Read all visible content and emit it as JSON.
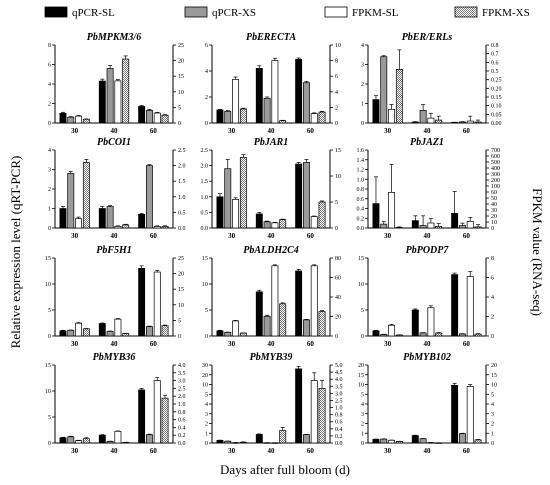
{
  "figure": {
    "left_axis_label": "Relative expression level (qRT-PCR)",
    "right_axis_label": "FPKM value (RNA-seq)",
    "x_axis_label": "Days after full bloom (d)"
  },
  "legend": [
    {
      "label": "qPCR-SL",
      "pattern": "solid-black"
    },
    {
      "label": "qPCR-XS",
      "pattern": "solid-gray"
    },
    {
      "label": "FPKM-SL",
      "pattern": "white"
    },
    {
      "label": "FPKM-XS",
      "pattern": "dotted"
    }
  ],
  "colors": {
    "qpcr_sl": "#000000",
    "qpcr_xs": "#9a9a9a",
    "fpkm_sl": "#ffffff",
    "fpkm_xs": "#d9d9d9"
  },
  "chart_data": [
    {
      "type": "bar",
      "title": "PbMPKM3/6",
      "categories": [
        "30",
        "40",
        "60"
      ],
      "left_ylim": [
        0,
        8
      ],
      "left_ticks": [
        "0",
        "2",
        "4",
        "6",
        "8"
      ],
      "right_ylim": [
        0,
        25
      ],
      "right_ticks": [
        "0",
        "5",
        "10",
        "15",
        "20",
        "25"
      ],
      "series": [
        {
          "name": "qPCR-SL",
          "axis": "left",
          "values": [
            1.0,
            4.3,
            1.7
          ],
          "errors": [
            0.1,
            0.2,
            0.1
          ]
        },
        {
          "name": "qPCR-XS",
          "axis": "left",
          "values": [
            0.6,
            5.6,
            1.3
          ],
          "errors": [
            0.05,
            0.3,
            0.1
          ]
        },
        {
          "name": "FPKM-SL",
          "axis": "right",
          "values": [
            2.2,
            13.5,
            3.2
          ],
          "errors": [
            0.2,
            0.4,
            0.2
          ]
        },
        {
          "name": "FPKM-XS",
          "axis": "right",
          "values": [
            1.2,
            20.5,
            2.5
          ],
          "errors": [
            0.1,
            1.0,
            0.2
          ]
        }
      ]
    },
    {
      "type": "bar",
      "title": "PbERECTA",
      "categories": [
        "30",
        "40",
        "60"
      ],
      "left_ylim": [
        0,
        6
      ],
      "left_ticks": [
        "0",
        "2",
        "4",
        "6"
      ],
      "right_ylim": [
        0,
        10
      ],
      "right_ticks": [
        "0",
        "2",
        "4",
        "6",
        "8",
        "10"
      ],
      "series": [
        {
          "name": "qPCR-SL",
          "axis": "left",
          "values": [
            1.0,
            4.2,
            4.9
          ],
          "errors": [
            0.05,
            0.2,
            0.1
          ]
        },
        {
          "name": "qPCR-XS",
          "axis": "left",
          "values": [
            0.9,
            1.9,
            3.1
          ],
          "errors": [
            0.05,
            0.1,
            0.1
          ]
        },
        {
          "name": "FPKM-SL",
          "axis": "right",
          "values": [
            5.6,
            8.0,
            1.2
          ],
          "errors": [
            0.3,
            0.3,
            0.1
          ]
        },
        {
          "name": "FPKM-XS",
          "axis": "right",
          "values": [
            1.8,
            0.3,
            1.4
          ],
          "errors": [
            0.1,
            0.05,
            0.1
          ]
        }
      ]
    },
    {
      "type": "bar",
      "title": "PbER/ERLs",
      "categories": [
        "30",
        "40",
        "60"
      ],
      "left_ylim": [
        0,
        4
      ],
      "left_ticks": [
        "0",
        "1",
        "2",
        "3",
        "4"
      ],
      "right_ylim": [
        0,
        0.8
      ],
      "right_ticks": [
        "0.00",
        "0.05",
        "0.10",
        "0.15",
        "0.20",
        "0.25",
        "0.5",
        "0.6",
        "0.7",
        "0.8"
      ],
      "series": [
        {
          "name": "qPCR-SL",
          "axis": "left",
          "values": [
            1.2,
            0.05,
            0.03
          ],
          "errors": [
            0.2,
            0.02,
            0.01
          ]
        },
        {
          "name": "qPCR-XS",
          "axis": "left",
          "values": [
            3.4,
            0.65,
            0.05
          ],
          "errors": [
            0.05,
            0.3,
            0.02
          ]
        },
        {
          "name": "FPKM-SL",
          "axis": "right",
          "values": [
            0.14,
            0.05,
            0.02
          ],
          "errors": [
            0.05,
            0.05,
            0.05
          ]
        },
        {
          "name": "FPKM-XS",
          "axis": "right",
          "values": [
            0.55,
            0.03,
            0.01
          ],
          "errors": [
            0.2,
            0.04,
            0.02
          ]
        }
      ]
    },
    {
      "type": "bar",
      "title": "PbCOI1",
      "categories": [
        "30",
        "40",
        "60"
      ],
      "left_ylim": [
        0,
        4
      ],
      "left_ticks": [
        "0",
        "1",
        "2",
        "3",
        "4"
      ],
      "right_ylim": [
        0,
        2.5
      ],
      "right_ticks": [
        "0.0",
        "0.5",
        "1.0",
        "1.5",
        "2.0",
        "2.5"
      ],
      "series": [
        {
          "name": "qPCR-SL",
          "axis": "left",
          "values": [
            1.0,
            1.0,
            0.7
          ],
          "errors": [
            0.1,
            0.1,
            0.05
          ]
        },
        {
          "name": "qPCR-XS",
          "axis": "left",
          "values": [
            2.8,
            1.1,
            3.2
          ],
          "errors": [
            0.1,
            0.05,
            0.05
          ]
        },
        {
          "name": "FPKM-SL",
          "axis": "right",
          "values": [
            0.3,
            0.05,
            0.05
          ],
          "errors": [
            0.05,
            0.02,
            0.02
          ]
        },
        {
          "name": "FPKM-XS",
          "axis": "right",
          "values": [
            2.1,
            0.1,
            0.05
          ],
          "errors": [
            0.1,
            0.02,
            0.02
          ]
        }
      ]
    },
    {
      "type": "bar",
      "title": "PbJAR1",
      "categories": [
        "30",
        "40",
        "60"
      ],
      "left_ylim": [
        0,
        2.5
      ],
      "left_ticks": [
        "0.0",
        "0.5",
        "1.0",
        "1.5",
        "2.0",
        "2.5"
      ],
      "right_ylim": [
        0,
        15
      ],
      "right_ticks": [
        "0",
        "5",
        "10",
        "15"
      ],
      "series": [
        {
          "name": "qPCR-SL",
          "axis": "left",
          "values": [
            1.0,
            0.45,
            2.05
          ],
          "errors": [
            0.1,
            0.05,
            0.05
          ]
        },
        {
          "name": "qPCR-XS",
          "axis": "left",
          "values": [
            1.9,
            0.2,
            2.1
          ],
          "errors": [
            0.3,
            0.02,
            0.1
          ]
        },
        {
          "name": "FPKM-SL",
          "axis": "right",
          "values": [
            5.5,
            1.0,
            2.2
          ],
          "errors": [
            0.3,
            0.1,
            0.1
          ]
        },
        {
          "name": "FPKM-XS",
          "axis": "right",
          "values": [
            13.6,
            1.6,
            5.0
          ],
          "errors": [
            0.5,
            0.1,
            0.2
          ]
        }
      ]
    },
    {
      "type": "bar",
      "title": "PbJAZ1",
      "categories": [
        "30",
        "40",
        "60"
      ],
      "left_ylim": [
        0,
        1.6
      ],
      "left_ticks": [
        "0.0",
        "0.2",
        "0.4",
        "0.6",
        "0.8",
        "1.0",
        "1.2",
        "1.4",
        "1.6"
      ],
      "right_ylim": [
        0,
        700
      ],
      "right_ticks": [
        "0",
        "10",
        "20",
        "30",
        "40",
        "50",
        "60",
        "100",
        "200",
        "300",
        "400",
        "500",
        "600",
        "700"
      ],
      "series": [
        {
          "name": "qPCR-SL",
          "axis": "left",
          "values": [
            0.5,
            0.15,
            0.3
          ],
          "errors": [
            0.55,
            0.1,
            0.45
          ]
        },
        {
          "name": "qPCR-XS",
          "axis": "left",
          "values": [
            0.08,
            0.05,
            0.05
          ],
          "errors": [
            0.05,
            0.2,
            0.05
          ]
        },
        {
          "name": "FPKM-SL",
          "axis": "right",
          "values": [
            320,
            45,
            60
          ],
          "errors": [
            250,
            40,
            35
          ]
        },
        {
          "name": "FPKM-XS",
          "axis": "right",
          "values": [
            5,
            15,
            10
          ],
          "errors": [
            5,
            25,
            20
          ]
        }
      ]
    },
    {
      "type": "bar",
      "title": "PbF5H1",
      "categories": [
        "30",
        "40",
        "60"
      ],
      "left_ylim": [
        0,
        15
      ],
      "left_ticks": [
        "0",
        "5",
        "10",
        "15"
      ],
      "right_ylim": [
        0,
        25
      ],
      "right_ticks": [
        "0",
        "5",
        "10",
        "15",
        "20",
        "25"
      ],
      "series": [
        {
          "name": "qPCR-SL",
          "axis": "left",
          "values": [
            1.0,
            2.4,
            13.0
          ],
          "errors": [
            0.1,
            0.1,
            0.5
          ]
        },
        {
          "name": "qPCR-XS",
          "axis": "left",
          "values": [
            1.1,
            0.9,
            1.8
          ],
          "errors": [
            0.05,
            0.05,
            0.1
          ]
        },
        {
          "name": "FPKM-SL",
          "axis": "right",
          "values": [
            4.1,
            5.4,
            20.5
          ],
          "errors": [
            0.2,
            0.2,
            0.5
          ]
        },
        {
          "name": "FPKM-XS",
          "axis": "right",
          "values": [
            2.3,
            0.8,
            3.3
          ],
          "errors": [
            0.1,
            0.05,
            0.2
          ]
        }
      ]
    },
    {
      "type": "bar",
      "title": "PbALDH2C4",
      "categories": [
        "30",
        "40",
        "60"
      ],
      "left_ylim": [
        0,
        15
      ],
      "left_ticks": [
        "0",
        "5",
        "10",
        "15"
      ],
      "right_ylim": [
        0,
        80
      ],
      "right_ticks": [
        "0",
        "20",
        "40",
        "60",
        "80"
      ],
      "series": [
        {
          "name": "qPCR-SL",
          "axis": "left",
          "values": [
            1.0,
            8.5,
            12.5
          ],
          "errors": [
            0.1,
            0.3,
            0.3
          ]
        },
        {
          "name": "qPCR-XS",
          "axis": "left",
          "values": [
            0.7,
            3.8,
            3.1
          ],
          "errors": [
            0.05,
            0.2,
            0.1
          ]
        },
        {
          "name": "FPKM-SL",
          "axis": "right",
          "values": [
            15.5,
            72.0,
            72.0
          ],
          "errors": [
            0.5,
            1.0,
            1.0
          ]
        },
        {
          "name": "FPKM-XS",
          "axis": "right",
          "values": [
            3.0,
            33.0,
            25.0
          ],
          "errors": [
            0.2,
            1.0,
            1.0
          ]
        }
      ]
    },
    {
      "type": "bar",
      "title": "PbPODP7",
      "categories": [
        "30",
        "40",
        "60"
      ],
      "left_ylim": [
        0,
        15
      ],
      "left_ticks": [
        "0",
        "5",
        "10",
        "15"
      ],
      "right_ylim": [
        0,
        8
      ],
      "right_ticks": [
        "0",
        "2",
        "4",
        "6",
        "8"
      ],
      "series": [
        {
          "name": "qPCR-SL",
          "axis": "left",
          "values": [
            1.0,
            5.0,
            11.8
          ],
          "errors": [
            0.1,
            0.2,
            0.3
          ]
        },
        {
          "name": "qPCR-XS",
          "axis": "left",
          "values": [
            0.3,
            0.6,
            0.4
          ],
          "errors": [
            0.05,
            0.05,
            0.05
          ]
        },
        {
          "name": "FPKM-SL",
          "axis": "right",
          "values": [
            1.1,
            2.9,
            6.1
          ],
          "errors": [
            0.1,
            0.2,
            0.5
          ]
        },
        {
          "name": "FPKM-XS",
          "axis": "right",
          "values": [
            0.1,
            0.3,
            0.2
          ],
          "errors": [
            0.02,
            0.05,
            0.05
          ]
        }
      ]
    },
    {
      "type": "bar",
      "title": "PbMYB36",
      "categories": [
        "30",
        "40",
        "60"
      ],
      "left_ylim": [
        0,
        15
      ],
      "left_ticks": [
        "0",
        "5",
        "10",
        "15"
      ],
      "right_ylim": [
        0,
        4.0
      ],
      "right_ticks": [
        "0.0",
        "0.2",
        "0.4",
        "0.6",
        "0.8",
        "1.0",
        "2.0",
        "2.5",
        "3.0",
        "3.5",
        "4.0"
      ],
      "series": [
        {
          "name": "qPCR-SL",
          "axis": "left",
          "values": [
            1.0,
            1.5,
            10.2
          ],
          "errors": [
            0.1,
            0.1,
            0.3
          ]
        },
        {
          "name": "qPCR-XS",
          "axis": "left",
          "values": [
            1.2,
            0.3,
            1.6
          ],
          "errors": [
            0.1,
            0.05,
            0.1
          ]
        },
        {
          "name": "FPKM-SL",
          "axis": "right",
          "values": [
            0.12,
            0.6,
            3.2
          ],
          "errors": [
            0.02,
            0.02,
            0.15
          ]
        },
        {
          "name": "FPKM-XS",
          "axis": "right",
          "values": [
            0.22,
            0.03,
            2.3
          ],
          "errors": [
            0.05,
            0.01,
            0.15
          ]
        }
      ]
    },
    {
      "type": "bar",
      "title": "PbMYB39",
      "categories": [
        "30",
        "40",
        "60"
      ],
      "left_ylim": [
        0,
        30
      ],
      "left_ticks": [
        "0",
        "1",
        "2",
        "3",
        "4",
        "5",
        "10",
        "20",
        "30"
      ],
      "right_ylim": [
        0,
        5.0
      ],
      "right_ticks": [
        "0.0",
        "0.2",
        "0.4",
        "0.6",
        "0.8",
        "1.0",
        "2.5",
        "3.0",
        "3.5",
        "4.0",
        "4.5",
        "5.0"
      ],
      "series": [
        {
          "name": "qPCR-SL",
          "axis": "left",
          "values": [
            1.0,
            3.3,
            28.5
          ],
          "errors": [
            0.1,
            0.2,
            1.0
          ]
        },
        {
          "name": "qPCR-XS",
          "axis": "left",
          "values": [
            0.7,
            0.1,
            3.2
          ],
          "errors": [
            0.05,
            0.02,
            0.1
          ]
        },
        {
          "name": "FPKM-SL",
          "axis": "right",
          "values": [
            0.02,
            0.01,
            4.0
          ],
          "errors": [
            0.01,
            0.01,
            0.5
          ]
        },
        {
          "name": "FPKM-XS",
          "axis": "right",
          "values": [
            0.05,
            0.8,
            3.5
          ],
          "errors": [
            0.02,
            0.2,
            0.5
          ]
        }
      ]
    },
    {
      "type": "bar",
      "title": "PbMYB102",
      "categories": [
        "30",
        "40",
        "60"
      ],
      "left_ylim": [
        0,
        20
      ],
      "left_ticks": [
        "0",
        "1",
        "2",
        "3",
        "4",
        "5",
        "10",
        "15",
        "20"
      ],
      "right_ylim": [
        0,
        20
      ],
      "right_ticks": [
        "0",
        "1",
        "2",
        "3",
        "4",
        "5",
        "10",
        "15",
        "20"
      ],
      "series": [
        {
          "name": "qPCR-SL",
          "axis": "left",
          "values": [
            0.95,
            1.9,
            14.8
          ],
          "errors": [
            0.05,
            0.1,
            0.5
          ]
        },
        {
          "name": "qPCR-XS",
          "axis": "left",
          "values": [
            1.0,
            1.1,
            2.4
          ],
          "errors": [
            0.05,
            0.05,
            0.1
          ]
        },
        {
          "name": "FPKM-SL",
          "axis": "right",
          "values": [
            0.7,
            0.1,
            14.5
          ],
          "errors": [
            0.05,
            0.02,
            0.5
          ]
        },
        {
          "name": "FPKM-XS",
          "axis": "right",
          "values": [
            0.4,
            0.05,
            0.8
          ],
          "errors": [
            0.05,
            0.01,
            0.1
          ]
        }
      ]
    }
  ]
}
